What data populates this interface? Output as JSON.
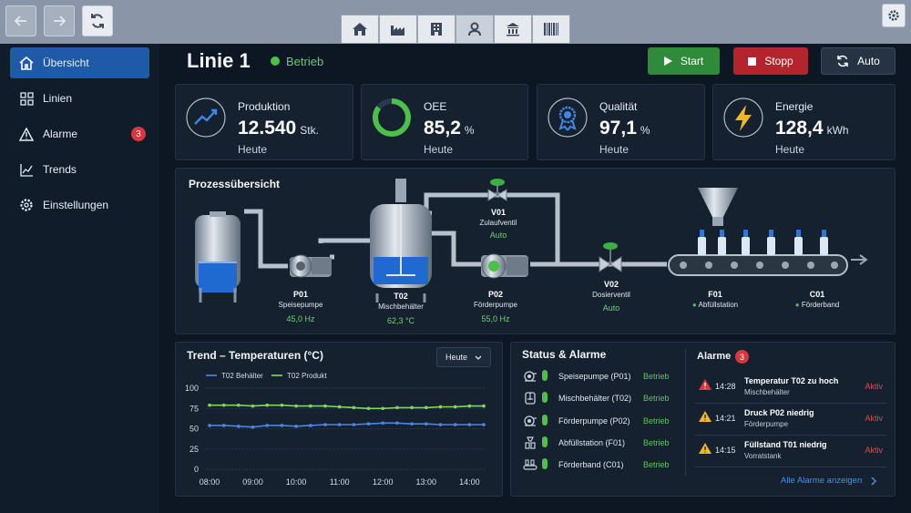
{
  "header": {
    "title": "Linie 1",
    "status": "Betrieb",
    "start": "Start",
    "stop": "Stopp",
    "auto": "Auto"
  },
  "colors": {
    "accent": "#1e5aa8",
    "ok": "#4cc14a",
    "alarm": "#d9363e",
    "warn": "#f0b72b",
    "start": "#2f8a3a",
    "stop": "#b4242d"
  },
  "topnav": {
    "tabs": [
      "home-icon",
      "factory-icon",
      "building-icon",
      "operator-icon",
      "institution-icon",
      "barcode-icon"
    ],
    "active_tab": 3
  },
  "sidebar": {
    "items": [
      {
        "label": "Übersicht",
        "icon": "home-icon",
        "active": true
      },
      {
        "label": "Linien",
        "icon": "grid-icon"
      },
      {
        "label": "Alarme",
        "icon": "warning-icon",
        "badge": "3"
      },
      {
        "label": "Trends",
        "icon": "chart-icon"
      },
      {
        "label": "Einstellungen",
        "icon": "gear-icon"
      }
    ]
  },
  "kpis": [
    {
      "label": "Produktion",
      "value": "12.540",
      "unit": "Stk.",
      "sub": "Heute",
      "icon": "trend-up-icon"
    },
    {
      "label": "OEE",
      "value": "85,2",
      "unit": "%",
      "sub": "Heute",
      "icon": "donut-icon",
      "fraction": 0.852
    },
    {
      "label": "Qualität",
      "value": "97,1",
      "unit": "%",
      "sub": "Heute",
      "icon": "award-icon"
    },
    {
      "label": "Energie",
      "value": "128,4",
      "unit": "kWh",
      "sub": "Heute",
      "icon": "bolt-icon"
    }
  ],
  "process": {
    "title": "Prozessübersicht",
    "p01": {
      "id": "P01",
      "name": "Speisepumpe",
      "value": "45,0 Hz"
    },
    "t02": {
      "id": "T02",
      "name": "Mischbehälter",
      "value": "62,3 °C"
    },
    "p02": {
      "id": "P02",
      "name": "Förderpumpe",
      "value": "55,0 Hz"
    },
    "v01": {
      "id": "V01",
      "name": "Zulaufventil",
      "value": "Auto"
    },
    "v02": {
      "id": "V02",
      "name": "Dosierventil",
      "value": "Auto"
    },
    "f01": {
      "id": "F01",
      "name": "Abfüllstation"
    },
    "c01": {
      "id": "C01",
      "name": "Förderband"
    }
  },
  "trend": {
    "title": "Trend – Temperaturen (°C)",
    "range": "Heute",
    "chart_data": {
      "type": "line",
      "x": [
        "08:00",
        "09:00",
        "10:00",
        "11:00",
        "12:00",
        "13:00",
        "14:00"
      ],
      "ylim": [
        0,
        100
      ],
      "yticks": [
        0,
        25,
        50,
        75,
        100
      ],
      "grid": true,
      "legend": "top-left",
      "series": [
        {
          "name": "T02 Behälter",
          "color": "#4a86e8",
          "points": [
            [
              0,
              54
            ],
            [
              0.33,
              54
            ],
            [
              0.67,
              53
            ],
            [
              1,
              52
            ],
            [
              1.33,
              54
            ],
            [
              1.67,
              54
            ],
            [
              2,
              53
            ],
            [
              2.33,
              54
            ],
            [
              2.67,
              55
            ],
            [
              3,
              55
            ],
            [
              3.33,
              55
            ],
            [
              3.67,
              56
            ],
            [
              4,
              57
            ],
            [
              4.33,
              57
            ],
            [
              4.67,
              56
            ],
            [
              5,
              56
            ],
            [
              5.33,
              55
            ],
            [
              5.67,
              55
            ],
            [
              6,
              55
            ],
            [
              6.33,
              55
            ]
          ]
        },
        {
          "name": "T02 Produkt",
          "color": "#7ed957",
          "points": [
            [
              0,
              79
            ],
            [
              0.33,
              79
            ],
            [
              0.67,
              79
            ],
            [
              1,
              78
            ],
            [
              1.33,
              79
            ],
            [
              1.67,
              79
            ],
            [
              2,
              78
            ],
            [
              2.33,
              78
            ],
            [
              2.67,
              78
            ],
            [
              3,
              77
            ],
            [
              3.33,
              76
            ],
            [
              3.67,
              75
            ],
            [
              4,
              75
            ],
            [
              4.33,
              76
            ],
            [
              4.67,
              76
            ],
            [
              5,
              76
            ],
            [
              5.33,
              77
            ],
            [
              5.67,
              77
            ],
            [
              6,
              78
            ],
            [
              6.33,
              78
            ]
          ]
        }
      ]
    }
  },
  "status": {
    "title": "Status & Alarme",
    "rows": [
      {
        "icon": "pump-icon",
        "name": "Speisepumpe (P01)",
        "value": "Betrieb"
      },
      {
        "icon": "tank-icon",
        "name": "Mischbehälter (T02)",
        "value": "Betrieb"
      },
      {
        "icon": "pump-icon",
        "name": "Förderpumpe (P02)",
        "value": "Betrieb"
      },
      {
        "icon": "filler-icon",
        "name": "Abfüllstation (F01)",
        "value": "Betrieb"
      },
      {
        "icon": "conveyor-icon",
        "name": "Förderband (C01)",
        "value": "Betrieb"
      }
    ]
  },
  "alarms": {
    "title": "Alarme",
    "count": "3",
    "rows": [
      {
        "level": "critical",
        "time": "14:28",
        "message": "Temperatur T02 zu hoch",
        "source": "Mischbehälter",
        "state": "Aktiv"
      },
      {
        "level": "warning",
        "time": "14:21",
        "message": "Druck P02 niedrig",
        "source": "Förderpumpe",
        "state": "Aktiv"
      },
      {
        "level": "warning",
        "time": "14:15",
        "message": "Füllstand T01 niedrig",
        "source": "Vorratstank",
        "state": "Aktiv"
      }
    ],
    "show_all": "Alle Alarme anzeigen"
  }
}
